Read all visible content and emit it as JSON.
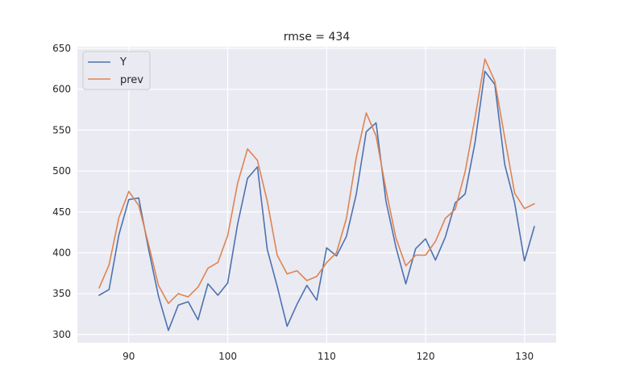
{
  "chart_data": {
    "type": "line",
    "title": "rmse = 434",
    "xlabel": "",
    "ylabel": "",
    "xlim": [
      84.8,
      133.2
    ],
    "ylim": [
      290,
      652
    ],
    "xticks": [
      90,
      100,
      110,
      120,
      130
    ],
    "yticks": [
      300,
      350,
      400,
      450,
      500,
      550,
      600,
      650
    ],
    "grid": true,
    "legend": "top-left",
    "x": [
      87,
      88,
      89,
      90,
      91,
      92,
      93,
      94,
      95,
      96,
      97,
      98,
      99,
      100,
      101,
      102,
      103,
      104,
      105,
      106,
      107,
      108,
      109,
      110,
      111,
      112,
      113,
      114,
      115,
      116,
      117,
      118,
      119,
      120,
      121,
      122,
      123,
      124,
      125,
      126,
      127,
      128,
      129,
      130,
      131
    ],
    "series": [
      {
        "name": "Y",
        "color": "#4c72b0",
        "values": [
          348,
          355,
          422,
          465,
          467,
          404,
          347,
          305,
          336,
          340,
          318,
          362,
          348,
          363,
          435,
          491,
          505,
          404,
          359,
          310,
          337,
          360,
          342,
          406,
          396,
          420,
          472,
          548,
          559,
          463,
          407,
          362,
          405,
          417,
          391,
          419,
          461,
          472,
          535,
          622,
          606,
          508,
          461,
          390,
          432
        ]
      },
      {
        "name": "prev",
        "color": "#dd8452",
        "values": [
          357,
          385,
          443,
          475,
          458,
          410,
          360,
          338,
          350,
          346,
          358,
          381,
          388,
          421,
          485,
          527,
          513,
          463,
          397,
          374,
          378,
          366,
          371,
          388,
          400,
          442,
          517,
          571,
          543,
          477,
          418,
          384,
          397,
          397,
          414,
          442,
          453,
          499,
          565,
          637,
          610,
          541,
          473,
          454,
          460
        ]
      }
    ]
  }
}
